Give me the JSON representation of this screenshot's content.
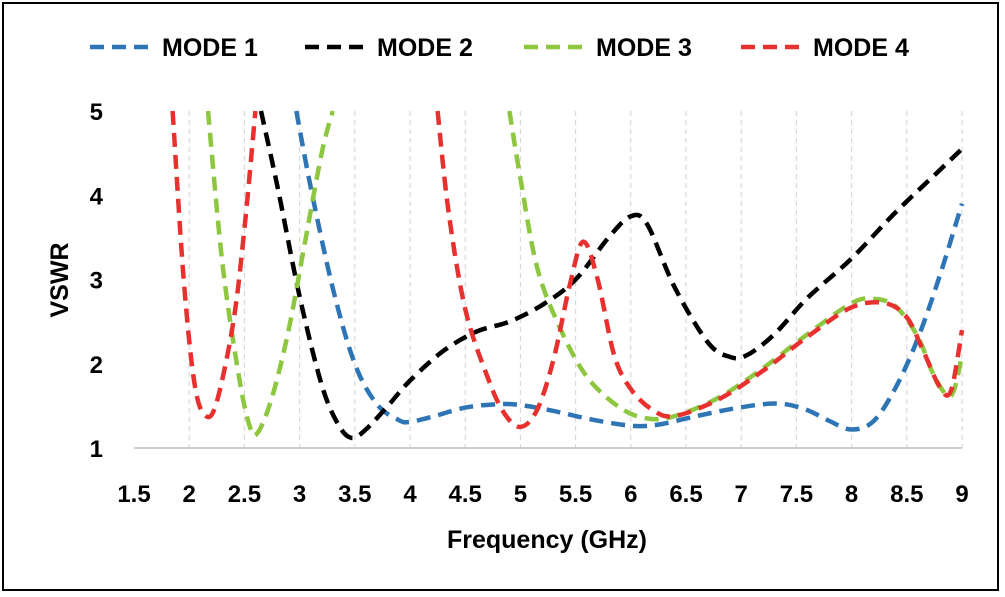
{
  "chart_data": {
    "type": "line",
    "title": "",
    "xlabel": "Frequency (GHz)",
    "ylabel": "VSWR",
    "xlim": [
      1.5,
      9
    ],
    "ylim": [
      1,
      5
    ],
    "x_ticks": [
      1.5,
      2,
      2.5,
      3,
      3.5,
      4,
      4.5,
      5,
      5.5,
      6,
      6.5,
      7,
      7.5,
      8,
      8.5,
      9
    ],
    "x_tick_labels": [
      "1.5",
      "2",
      "2.5",
      "3",
      "3.5",
      "4",
      "4.5",
      "5",
      "5.5",
      "6",
      "6.5",
      "7",
      "7.5",
      "8",
      "8.5",
      "9"
    ],
    "y_ticks": [
      1,
      2,
      3,
      4,
      5
    ],
    "y_tick_labels": [
      "1",
      "2",
      "3",
      "4",
      "5"
    ],
    "grid": "vertical-dashed",
    "legend_position": "top",
    "series": [
      {
        "name": "MODE 1",
        "color": "#2E75B6",
        "x": [
          2.97,
          3.1,
          3.3,
          3.5,
          3.7,
          3.9,
          4.0,
          4.2,
          4.5,
          4.8,
          5.0,
          5.3,
          5.6,
          5.9,
          6.1,
          6.3,
          6.6,
          6.9,
          7.2,
          7.4,
          7.6,
          7.8,
          8.0,
          8.2,
          8.4,
          8.6,
          8.8,
          9.0
        ],
        "y": [
          5.0,
          4.1,
          2.9,
          2.0,
          1.52,
          1.33,
          1.31,
          1.37,
          1.48,
          1.52,
          1.51,
          1.44,
          1.35,
          1.28,
          1.26,
          1.29,
          1.38,
          1.46,
          1.52,
          1.52,
          1.45,
          1.32,
          1.22,
          1.32,
          1.72,
          2.3,
          3.05,
          3.9
        ]
      },
      {
        "name": "MODE 2",
        "color": "#000000",
        "x": [
          2.65,
          2.8,
          3.0,
          3.2,
          3.35,
          3.47,
          3.6,
          3.8,
          4.0,
          4.3,
          4.6,
          4.9,
          5.2,
          5.5,
          5.8,
          6.0,
          6.15,
          6.4,
          6.7,
          6.9,
          7.05,
          7.3,
          7.6,
          8.0,
          8.4,
          8.8,
          9.0
        ],
        "y": [
          5.0,
          4.1,
          2.8,
          1.75,
          1.28,
          1.12,
          1.22,
          1.5,
          1.8,
          2.15,
          2.38,
          2.5,
          2.7,
          3.0,
          3.5,
          3.75,
          3.65,
          2.9,
          2.25,
          2.08,
          2.1,
          2.35,
          2.78,
          3.25,
          3.8,
          4.3,
          4.55
        ]
      },
      {
        "name": "MODE 3",
        "color": "#8DC63F",
        "x": [
          2.17,
          2.3,
          2.45,
          2.55,
          2.62,
          2.75,
          2.9,
          3.05,
          3.2,
          3.3,
          4.9,
          5.0,
          5.15,
          5.35,
          5.6,
          5.9,
          6.15,
          6.4,
          6.8,
          7.2,
          7.6,
          8.0,
          8.2,
          8.4,
          8.6,
          8.75,
          8.9,
          9.0
        ],
        "y": [
          5.0,
          3.2,
          1.85,
          1.25,
          1.18,
          1.6,
          2.4,
          3.45,
          4.5,
          5.0,
          5.0,
          4.2,
          3.15,
          2.45,
          1.85,
          1.48,
          1.35,
          1.38,
          1.6,
          1.95,
          2.35,
          2.72,
          2.77,
          2.68,
          2.32,
          1.85,
          1.62,
          2.1
        ]
      },
      {
        "name": "MODE 4",
        "color": "#E8312F",
        "x": [
          1.85,
          1.95,
          2.05,
          2.15,
          2.25,
          2.4,
          2.5,
          2.6,
          4.25,
          4.35,
          4.5,
          4.7,
          4.85,
          5.0,
          5.15,
          5.3,
          5.45,
          5.57,
          5.7,
          5.85,
          6.0,
          6.2,
          6.4,
          6.8,
          7.2,
          7.6,
          8.0,
          8.3,
          8.5,
          8.65,
          8.8,
          8.9,
          9.0
        ],
        "y": [
          5.0,
          3.0,
          1.75,
          1.38,
          1.55,
          2.5,
          3.6,
          5.0,
          5.0,
          3.8,
          2.65,
          1.85,
          1.42,
          1.25,
          1.45,
          2.05,
          2.95,
          3.45,
          3.0,
          2.1,
          1.7,
          1.45,
          1.38,
          1.58,
          1.92,
          2.32,
          2.67,
          2.72,
          2.55,
          2.15,
          1.72,
          1.68,
          2.4
        ]
      }
    ]
  }
}
